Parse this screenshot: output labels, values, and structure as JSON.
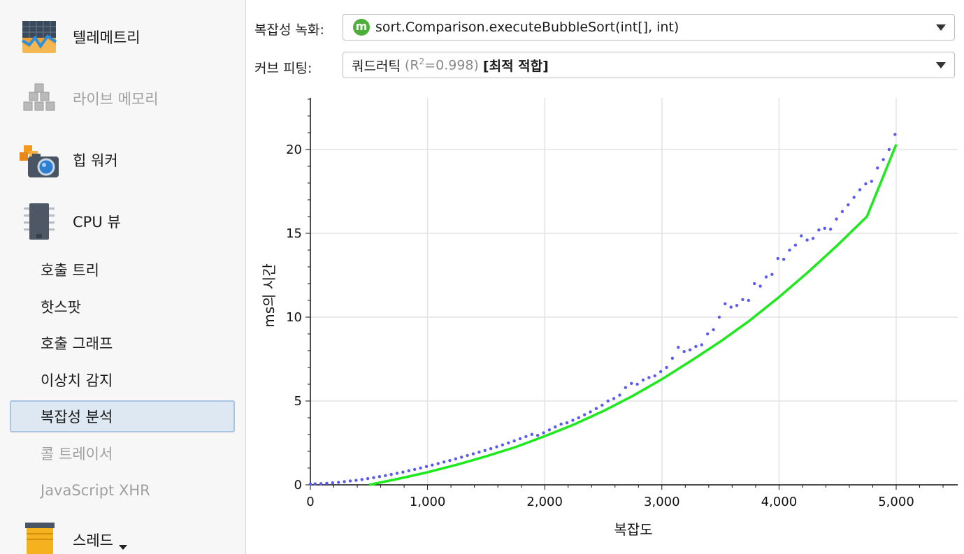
{
  "sidebar": {
    "main_items": [
      {
        "label": "텔레메트리",
        "icon": "telemetry-icon",
        "enabled": true
      },
      {
        "label": "라이브 메모리",
        "icon": "live-memory-icon",
        "enabled": false
      },
      {
        "label": "힙 워커",
        "icon": "heap-walker-icon",
        "enabled": true
      },
      {
        "label": "CPU 뷰",
        "icon": "cpu-view-icon",
        "enabled": true
      }
    ],
    "cpu_sub_items": [
      {
        "label": "호출 트리",
        "enabled": true,
        "selected": false
      },
      {
        "label": "핫스팟",
        "enabled": true,
        "selected": false
      },
      {
        "label": "호출 그래프",
        "enabled": true,
        "selected": false
      },
      {
        "label": "이상치 감지",
        "enabled": true,
        "selected": false
      },
      {
        "label": "복잡성 분석",
        "enabled": true,
        "selected": true
      },
      {
        "label": "콜 트레이서",
        "enabled": false,
        "selected": false
      },
      {
        "label": "JavaScript XHR",
        "enabled": false,
        "selected": false
      }
    ],
    "bottom_item": {
      "label": "스레드",
      "icon": "threads-icon"
    }
  },
  "controls": {
    "recording_label": "복잡성 녹화:",
    "method_icon_letter": "m",
    "method_value": "sort.Comparison.executeBubbleSort(int[], int)",
    "fitting_label": "커브 피팅:",
    "fit_name": "쿼드러틱",
    "fit_r2_prefix": "(R",
    "fit_r2_exp": "2",
    "fit_r2_suffix": "=0.998)",
    "fit_tag": "[최적 적합]"
  },
  "colors": {
    "measured": "#5a5af0",
    "fit": "#1ee81e",
    "grid": "#e3e3e3",
    "selection_bg": "#dde8f3",
    "selection_border": "#a9c5e2"
  },
  "chart_data": {
    "type": "scatter",
    "xlabel": "복잡도",
    "ylabel": "ms의 시간",
    "xlim": [
      0,
      5500
    ],
    "ylim": [
      0,
      23
    ],
    "xticks": [
      0,
      1000,
      2000,
      3000,
      4000,
      5000
    ],
    "xtick_labels": [
      "0",
      "1,000",
      "2,000",
      "3,000",
      "4,000",
      "5,000"
    ],
    "yticks": [
      0,
      5,
      10,
      15,
      20
    ],
    "ytick_labels": [
      "0",
      "5",
      "10",
      "15",
      "20"
    ],
    "grid": true,
    "series": [
      {
        "kind": "points",
        "x": [
          0,
          40,
          90,
          140,
          190,
          240,
          290,
          340,
          390,
          440,
          490,
          540,
          590,
          640,
          690,
          740,
          790,
          840,
          890,
          940,
          990,
          1040,
          1090,
          1140,
          1190,
          1240,
          1290,
          1340,
          1390,
          1440,
          1490,
          1540,
          1590,
          1640,
          1690,
          1740,
          1790,
          1840,
          1890,
          1940,
          1990,
          2040,
          2090,
          2140,
          2190,
          2240,
          2290,
          2340,
          2390,
          2440,
          2490,
          2540,
          2590,
          2640,
          2690,
          2740,
          2790,
          2840,
          2890,
          2940,
          2990,
          3040,
          3090,
          3140,
          3190,
          3240,
          3290,
          3340,
          3390,
          3440,
          3490,
          3540,
          3590,
          3640,
          3690,
          3740,
          3790,
          3840,
          3890,
          3940,
          3990,
          4040,
          4090,
          4140,
          4190,
          4240,
          4290,
          4340,
          4390,
          4440,
          4490,
          4540,
          4590,
          4640,
          4690,
          4740,
          4790,
          4840,
          4890,
          4940,
          4990
        ],
        "y": [
          0.05,
          0.06,
          0.07,
          0.09,
          0.12,
          0.15,
          0.19,
          0.23,
          0.27,
          0.32,
          0.37,
          0.43,
          0.49,
          0.55,
          0.62,
          0.69,
          0.76,
          0.84,
          0.92,
          1.0,
          1.09,
          1.18,
          1.27,
          1.36,
          1.45,
          1.55,
          1.65,
          1.75,
          1.85,
          1.95,
          2.05,
          2.16,
          2.27,
          2.38,
          2.5,
          2.62,
          2.75,
          2.88,
          3.01,
          2.95,
          3.1,
          3.28,
          3.45,
          3.62,
          3.7,
          3.85,
          4.0,
          4.18,
          4.35,
          4.55,
          4.75,
          5.0,
          5.15,
          5.35,
          5.8,
          6.05,
          6.0,
          6.25,
          6.4,
          6.5,
          6.75,
          7.0,
          7.55,
          8.2,
          7.95,
          8.05,
          8.25,
          8.35,
          9.0,
          9.25,
          10.0,
          10.8,
          10.6,
          10.7,
          11.05,
          11.0,
          12.0,
          11.85,
          12.4,
          12.55,
          13.5,
          13.45,
          14.0,
          14.3,
          14.85,
          14.6,
          14.7,
          15.2,
          15.3,
          15.25,
          15.85,
          16.3,
          16.7,
          17.15,
          17.6,
          17.95,
          18.1,
          18.9,
          19.4,
          20.0,
          20.9
        ]
      },
      {
        "kind": "curve",
        "x": [
          500,
          750,
          1000,
          1250,
          1500,
          1750,
          2000,
          2250,
          2500,
          2750,
          3000,
          3250,
          3500,
          3750,
          4000,
          4250,
          4500,
          4750,
          5000
        ],
        "y": [
          0.0,
          0.36,
          0.75,
          1.2,
          1.7,
          2.25,
          2.9,
          3.6,
          4.4,
          5.3,
          6.3,
          7.4,
          8.55,
          9.8,
          11.2,
          12.7,
          14.3,
          16.0,
          20.3
        ]
      }
    ]
  }
}
